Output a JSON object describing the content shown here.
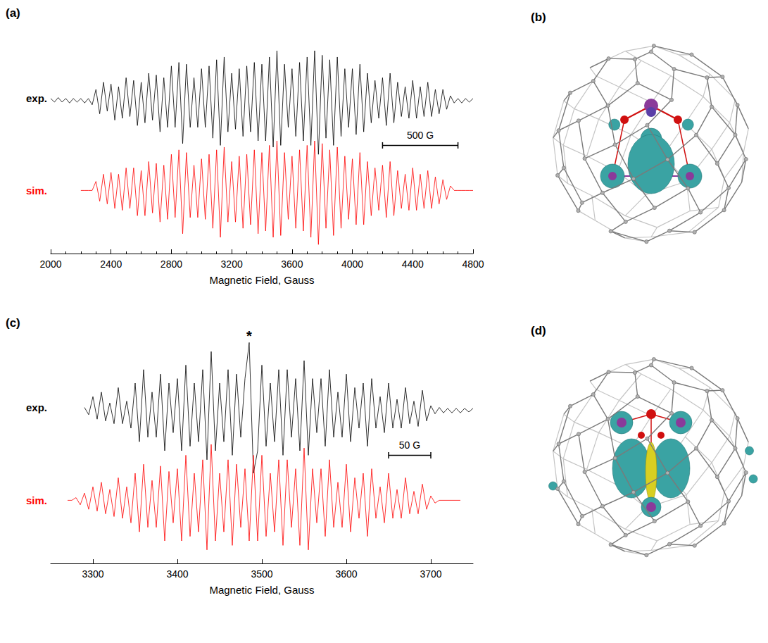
{
  "chart_data": [
    {
      "type": "line",
      "panel": "(a)",
      "xlabel": "Magnetic Field, Gauss",
      "x": [
        2000,
        2025,
        2050,
        2075,
        2100,
        2125,
        2150,
        2175,
        2200,
        2225,
        2250,
        2275,
        2300,
        2325,
        2350,
        2375,
        2400,
        2425,
        2450,
        2475,
        2500,
        2525,
        2550,
        2575,
        2600,
        2625,
        2650,
        2675,
        2700,
        2725,
        2750,
        2775,
        2800,
        2825,
        2850,
        2875,
        2900,
        2925,
        2950,
        2975,
        3000,
        3025,
        3050,
        3075,
        3100,
        3125,
        3150,
        3175,
        3200,
        3225,
        3250,
        3275,
        3300,
        3325,
        3350,
        3375,
        3400,
        3425,
        3450,
        3475,
        3500,
        3525,
        3550,
        3575,
        3600,
        3625,
        3650,
        3675,
        3700,
        3725,
        3750,
        3775,
        3800,
        3825,
        3850,
        3875,
        3900,
        3925,
        3950,
        3975,
        4000,
        4025,
        4050,
        4075,
        4100,
        4125,
        4150,
        4175,
        4200,
        4225,
        4250,
        4275,
        4300,
        4325,
        4350,
        4375,
        4400,
        4425,
        4450,
        4475,
        4500,
        4525,
        4550,
        4575,
        4600,
        4625,
        4650,
        4675,
        4700,
        4725,
        4750,
        4775,
        4800
      ],
      "series": [
        {
          "name": "exp.",
          "color": "#000000",
          "values": [
            1.02,
            0.98,
            1.03,
            0.98,
            1.02,
            0.97,
            1.02,
            0.98,
            1.02,
            0.97,
            1.02,
            0.95,
            1.12,
            0.85,
            1.2,
            0.88,
            1.18,
            0.78,
            1.15,
            0.8,
            1.25,
            0.82,
            1.22,
            0.72,
            1.2,
            0.75,
            1.3,
            0.78,
            1.28,
            0.65,
            1.25,
            0.7,
            1.38,
            0.7,
            1.42,
            0.52,
            1.4,
            0.7,
            1.25,
            0.7,
            1.35,
            0.7,
            1.38,
            0.58,
            1.45,
            0.5,
            1.48,
            0.65,
            1.3,
            0.68,
            1.35,
            0.6,
            1.38,
            0.65,
            1.42,
            0.55,
            1.4,
            0.55,
            1.48,
            0.48,
            1.55,
            0.5,
            1.4,
            0.7,
            1.35,
            0.6,
            1.42,
            0.55,
            1.48,
            0.5,
            1.55,
            0.4,
            1.5,
            0.58,
            1.45,
            0.5,
            1.48,
            0.6,
            1.35,
            0.7,
            1.35,
            0.62,
            1.4,
            0.65,
            1.3,
            0.75,
            1.22,
            0.8,
            1.25,
            0.72,
            1.3,
            0.75,
            1.2,
            0.82,
            1.15,
            0.8,
            1.22,
            0.8,
            1.15,
            0.82,
            1.2,
            0.82,
            1.12,
            0.85,
            1.12,
            0.9,
            1.05,
            0.97,
            1.02,
            0.97,
            1.02,
            0.98,
            1.02
          ]
        },
        {
          "name": "sim.",
          "color": "#ff0000",
          "values": [
            null,
            null,
            null,
            null,
            null,
            null,
            null,
            null,
            0,
            0,
            0,
            0,
            0.1,
            -0.12,
            0.18,
            -0.15,
            0.2,
            -0.2,
            0.18,
            -0.22,
            0.25,
            -0.2,
            0.25,
            -0.28,
            0.22,
            -0.28,
            0.32,
            -0.25,
            0.3,
            -0.35,
            0.28,
            -0.32,
            0.4,
            -0.3,
            0.45,
            -0.48,
            0.42,
            -0.3,
            0.28,
            -0.3,
            0.35,
            -0.32,
            0.4,
            -0.42,
            0.45,
            -0.52,
            0.48,
            -0.35,
            0.32,
            -0.35,
            0.38,
            -0.42,
            0.4,
            -0.38,
            0.45,
            -0.48,
            0.42,
            -0.45,
            0.5,
            -0.52,
            0.55,
            -0.5,
            0.42,
            -0.32,
            0.38,
            -0.42,
            0.45,
            -0.45,
            0.5,
            -0.52,
            0.55,
            -0.6,
            0.52,
            -0.42,
            0.45,
            -0.5,
            0.48,
            -0.42,
            0.38,
            -0.32,
            0.35,
            -0.38,
            0.42,
            -0.38,
            0.32,
            -0.28,
            0.25,
            -0.22,
            0.28,
            -0.3,
            0.32,
            -0.28,
            0.22,
            -0.2,
            0.18,
            -0.22,
            0.25,
            -0.22,
            0.18,
            -0.2,
            0.22,
            -0.2,
            0.15,
            -0.15,
            0.12,
            -0.1,
            0.05,
            0,
            0,
            0,
            0,
            0,
            0
          ]
        }
      ],
      "xlim": [
        2000,
        4800
      ],
      "xticks": [
        2000,
        2400,
        2800,
        3200,
        3600,
        4000,
        4400,
        4800
      ],
      "ylim": [
        -0.7,
        1.8
      ],
      "tick_labels": "x",
      "grid": false,
      "scale_bar": {
        "x": 4200,
        "y": 0.5,
        "length": 500,
        "label": "500 G"
      }
    },
    {
      "type": "line",
      "panel": "(c)",
      "xlabel": "Magnetic Field, Gauss",
      "x": [
        3250,
        3255,
        3260,
        3265,
        3270,
        3275,
        3280,
        3285,
        3290,
        3295,
        3300,
        3305,
        3310,
        3315,
        3320,
        3325,
        3330,
        3335,
        3340,
        3345,
        3350,
        3355,
        3360,
        3365,
        3370,
        3375,
        3380,
        3385,
        3390,
        3395,
        3400,
        3405,
        3410,
        3415,
        3420,
        3425,
        3430,
        3435,
        3440,
        3445,
        3450,
        3455,
        3460,
        3465,
        3470,
        3475,
        3480,
        3485,
        3490,
        3495,
        3500,
        3505,
        3510,
        3515,
        3520,
        3525,
        3530,
        3535,
        3540,
        3545,
        3550,
        3555,
        3560,
        3565,
        3570,
        3575,
        3580,
        3585,
        3590,
        3595,
        3600,
        3605,
        3610,
        3615,
        3620,
        3625,
        3630,
        3635,
        3640,
        3645,
        3650,
        3655,
        3660,
        3665,
        3670,
        3675,
        3680,
        3685,
        3690,
        3695,
        3700,
        3705,
        3710,
        3715,
        3720,
        3725,
        3730,
        3735,
        3740,
        3745,
        3750
      ],
      "series": [
        {
          "name": "exp.",
          "color": "#000000",
          "values": [
            null,
            null,
            null,
            null,
            null,
            null,
            null,
            null,
            1.03,
            0.95,
            1.15,
            0.9,
            1.2,
            0.88,
            1.08,
            0.85,
            1.25,
            0.85,
            1.1,
            0.8,
            1.3,
            0.65,
            1.45,
            0.7,
            1.2,
            0.7,
            1.4,
            0.55,
            1.3,
            0.75,
            1.35,
            0.55,
            1.5,
            0.6,
            1.3,
            0.65,
            1.45,
            0.45,
            1.65,
            0.55,
            1.3,
            0.65,
            1.45,
            0.5,
            1.4,
            0.7,
            1.35,
            1.75,
            0.3,
            0.55,
            1.5,
            0.6,
            1.3,
            0.65,
            1.45,
            0.5,
            1.45,
            0.7,
            1.35,
            0.55,
            1.55,
            0.5,
            1.35,
            0.75,
            1.35,
            0.6,
            1.45,
            0.7,
            1.2,
            0.7,
            1.4,
            0.65,
            1.25,
            0.8,
            1.3,
            0.6,
            1.35,
            0.8,
            1.15,
            0.75,
            1.3,
            0.8,
            1.12,
            0.8,
            1.25,
            0.85,
            1.1,
            0.82,
            1.22,
            0.88,
            1.05,
            0.96,
            1.03,
            0.97,
            1.02,
            0.97,
            1.02,
            0.97,
            1.02,
            0.98,
            1.02
          ]
        },
        {
          "name": "sim.",
          "color": "#ff0000",
          "values": [
            null,
            null,
            null,
            null,
            0,
            0,
            0.03,
            -0.05,
            0.08,
            -0.1,
            0.15,
            -0.12,
            0.2,
            -0.15,
            0.12,
            -0.18,
            0.25,
            -0.2,
            0.15,
            -0.25,
            0.3,
            -0.35,
            0.4,
            -0.3,
            0.22,
            -0.3,
            0.38,
            -0.45,
            0.32,
            -0.25,
            0.35,
            -0.45,
            0.5,
            -0.4,
            0.3,
            -0.35,
            0.45,
            -0.55,
            0.62,
            -0.45,
            0.3,
            -0.35,
            0.45,
            -0.5,
            0.4,
            -0.3,
            0.35,
            -0.45,
            0.5,
            -0.45,
            0.5,
            -0.4,
            0.3,
            -0.35,
            0.45,
            -0.5,
            0.45,
            -0.3,
            0.35,
            -0.5,
            0.58,
            -0.55,
            0.35,
            -0.25,
            0.35,
            -0.4,
            0.45,
            -0.3,
            0.2,
            -0.3,
            0.4,
            -0.35,
            0.25,
            -0.2,
            0.3,
            -0.4,
            0.35,
            -0.2,
            0.15,
            -0.25,
            0.3,
            -0.2,
            0.12,
            -0.2,
            0.25,
            -0.15,
            0.1,
            -0.15,
            0.18,
            -0.1,
            0.05,
            -0.03,
            0,
            0,
            0,
            0,
            0,
            0,
            null,
            null,
            null
          ]
        }
      ],
      "xlim": [
        3250,
        3750
      ],
      "xticks": [
        3300,
        3400,
        3500,
        3600,
        3700
      ],
      "ylim": [
        -0.7,
        1.8
      ],
      "tick_labels": "x",
      "grid": false,
      "scale_bar": {
        "x": 3650,
        "y": 0.5,
        "length": 50,
        "label": "50 G"
      },
      "annotations": [
        {
          "text": "*",
          "x": 3485,
          "y": 1.78
        }
      ]
    }
  ],
  "structures": [
    {
      "panel": "(b)"
    },
    {
      "panel": "(d)"
    }
  ]
}
